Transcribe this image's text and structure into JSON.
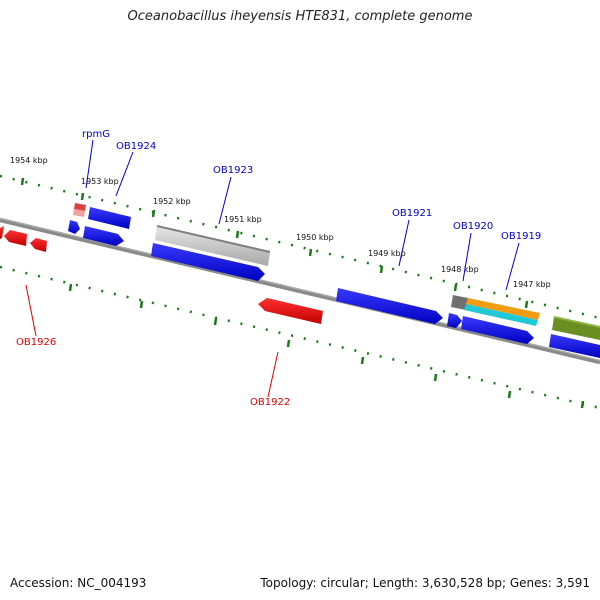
{
  "title": "Oceanobacillus iheyensis HTE831, complete genome",
  "footer": {
    "accession": "Accession: NC_004193",
    "stats": "Topology: circular; Length: 3,630,528 bp; Genes: 3,591"
  },
  "colors": {
    "forward_strand": "#0000ee",
    "reverse_strand": "#ee0000",
    "rna": "#c8c8c8",
    "tick": "#1a7a1a",
    "backbone": "#808080",
    "label_forward": "#0000cc",
    "label_reverse": "#dd0000"
  },
  "ruler": {
    "tick_labels": [
      "1954 kbp",
      "1953 kbp",
      "1952 kbp",
      "1951 kbp",
      "1950 kbp",
      "1949 kbp",
      "1948 kbp",
      "1947 kbp"
    ]
  },
  "genes": [
    {
      "name": "rpmG",
      "strand": "forward"
    },
    {
      "name": "OB1924",
      "strand": "forward"
    },
    {
      "name": "OB1923",
      "strand": "forward"
    },
    {
      "name": "OB1921",
      "strand": "forward"
    },
    {
      "name": "OB1920",
      "strand": "forward"
    },
    {
      "name": "OB1919",
      "strand": "forward"
    },
    {
      "name": "OB1926",
      "strand": "reverse"
    },
    {
      "name": "OB1922",
      "strand": "reverse"
    }
  ]
}
